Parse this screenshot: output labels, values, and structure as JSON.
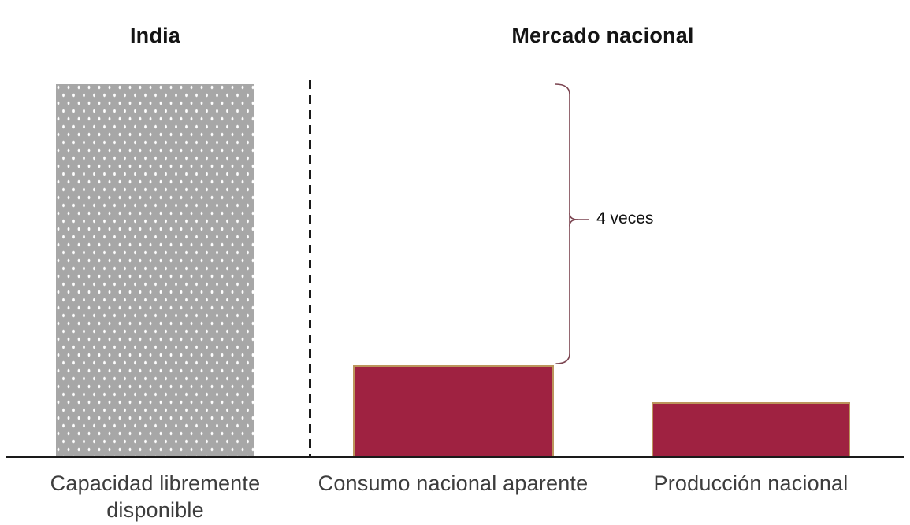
{
  "colors": {
    "bar_maroon": "#9F2241",
    "bar_gold": "#BC955C",
    "bar_gray": "#A7A7A7",
    "brace": "#7B4450",
    "axis": "#1A1A1A",
    "title_text": "#141414",
    "label_text": "#3D3D3D"
  },
  "chart_data": {
    "type": "bar",
    "groups": [
      {
        "title": "India",
        "bars": [
          {
            "label": "Capacidad libremente disponible",
            "value": 4.05,
            "style": "gray-dotted"
          }
        ]
      },
      {
        "title": "Mercado nacional",
        "bars": [
          {
            "label": "Consumo nacional aparente",
            "value": 1,
            "style": "maroon-gold-border"
          },
          {
            "label": "Producción nacional",
            "value": 0.6,
            "style": "maroon-gold-border"
          }
        ]
      }
    ],
    "annotation_text": "4 veces",
    "ylim": [
      0,
      4.2
    ],
    "grid": false,
    "legend": false,
    "divider": "dashed-vertical-between-groups"
  }
}
